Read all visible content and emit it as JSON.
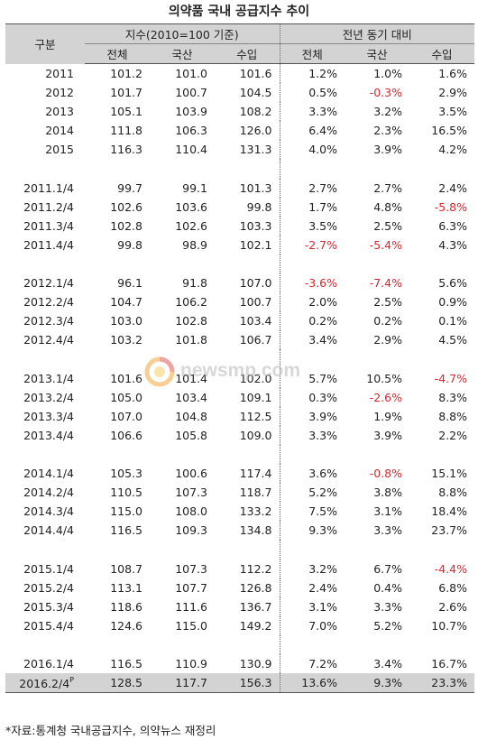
{
  "title": "의약품 국내 공급지수 추이",
  "header": {
    "group": "구분",
    "index_group": "지수(2010=100 기준)",
    "yoy_group": "전년 동기 대비",
    "cols": [
      "전체",
      "국산",
      "수입",
      "전체",
      "국산",
      "수입"
    ]
  },
  "rows": [
    [
      "2011",
      "101.2",
      "101.0",
      "101.6",
      "1.2%",
      "1.0%",
      "1.6%"
    ],
    [
      "2012",
      "101.7",
      "100.7",
      "104.5",
      "0.5%",
      "-0.3%",
      "2.9%"
    ],
    [
      "2013",
      "105.1",
      "103.9",
      "108.2",
      "3.3%",
      "3.2%",
      "3.5%"
    ],
    [
      "2014",
      "111.8",
      "106.3",
      "126.0",
      "6.4%",
      "2.3%",
      "16.5%"
    ],
    [
      "2015",
      "116.3",
      "110.4",
      "131.3",
      "4.0%",
      "3.9%",
      "4.2%"
    ],
    null,
    [
      "2011.1/4",
      "99.7",
      "99.1",
      "101.3",
      "2.7%",
      "2.7%",
      "2.4%"
    ],
    [
      "2011.2/4",
      "102.6",
      "103.6",
      "99.8",
      "1.7%",
      "4.8%",
      "-5.8%"
    ],
    [
      "2011.3/4",
      "102.8",
      "102.6",
      "103.3",
      "3.5%",
      "2.5%",
      "6.3%"
    ],
    [
      "2011.4/4",
      "99.8",
      "98.9",
      "102.1",
      "-2.7%",
      "-5.4%",
      "4.3%"
    ],
    null,
    [
      "2012.1/4",
      "96.1",
      "91.8",
      "107.0",
      "-3.6%",
      "-7.4%",
      "5.6%"
    ],
    [
      "2012.2/4",
      "104.7",
      "106.2",
      "100.7",
      "2.0%",
      "2.5%",
      "0.9%"
    ],
    [
      "2012.3/4",
      "103.0",
      "102.8",
      "103.4",
      "0.2%",
      "0.2%",
      "0.1%"
    ],
    [
      "2012.4/4",
      "103.2",
      "101.8",
      "106.7",
      "3.4%",
      "2.9%",
      "4.5%"
    ],
    null,
    [
      "2013.1/4",
      "101.6",
      "101.4",
      "102.0",
      "5.7%",
      "10.5%",
      "-4.7%"
    ],
    [
      "2013.2/4",
      "105.0",
      "103.4",
      "109.1",
      "0.3%",
      "-2.6%",
      "8.3%"
    ],
    [
      "2013.3/4",
      "107.0",
      "104.8",
      "112.5",
      "3.9%",
      "1.9%",
      "8.8%"
    ],
    [
      "2013.4/4",
      "106.6",
      "105.8",
      "109.0",
      "3.3%",
      "3.9%",
      "2.2%"
    ],
    null,
    [
      "2014.1/4",
      "105.3",
      "100.6",
      "117.4",
      "3.6%",
      "-0.8%",
      "15.1%"
    ],
    [
      "2014.2/4",
      "110.5",
      "107.3",
      "118.7",
      "5.2%",
      "3.8%",
      "8.8%"
    ],
    [
      "2014.3/4",
      "115.0",
      "108.0",
      "133.2",
      "7.5%",
      "3.1%",
      "18.4%"
    ],
    [
      "2014.4/4",
      "116.5",
      "109.3",
      "134.8",
      "9.3%",
      "3.3%",
      "23.7%"
    ],
    null,
    [
      "2015.1/4",
      "108.7",
      "107.3",
      "112.2",
      "3.2%",
      "6.7%",
      "-4.4%"
    ],
    [
      "2015.2/4",
      "113.1",
      "107.7",
      "126.8",
      "2.4%",
      "0.4%",
      "6.8%"
    ],
    [
      "2015.3/4",
      "118.6",
      "111.6",
      "136.7",
      "3.1%",
      "3.3%",
      "2.6%"
    ],
    [
      "2015.4/4",
      "124.6",
      "115.0",
      "149.2",
      "7.0%",
      "5.2%",
      "10.7%"
    ],
    null,
    [
      "2016.1/4",
      "116.5",
      "110.9",
      "130.9",
      "7.2%",
      "3.4%",
      "16.7%"
    ]
  ],
  "last_row": {
    "label": "2016.2/4",
    "label_sup": "P",
    "values": [
      "128.5",
      "117.7",
      "156.3",
      "13.6%",
      "9.3%",
      "23.3%"
    ]
  },
  "negative_color": "#d9262d",
  "header_bg": "#d3d3d3",
  "watermark": {
    "icon": "newsmp-logo-icon",
    "text": "newsmp.com"
  },
  "source": "*자료:통계청 국내공급지수, 의약뉴스 재정리"
}
